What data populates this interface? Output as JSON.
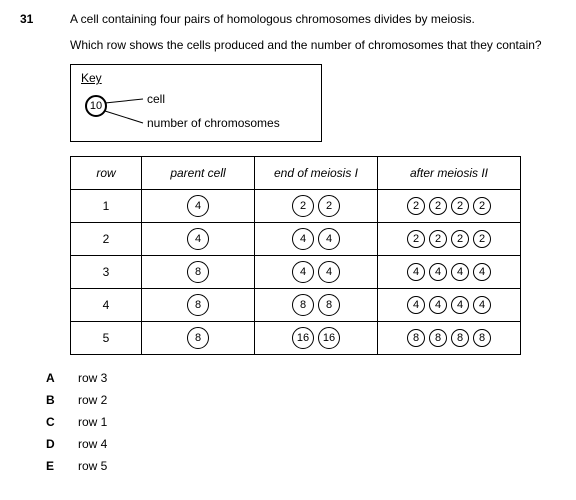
{
  "question": {
    "number": "31",
    "line1": "A cell containing four pairs of homologous chromosomes divides by meiosis.",
    "line2": "Which row shows the cells produced and the number of chromosomes that they contain?"
  },
  "key": {
    "title": "Key",
    "example_number": "10",
    "label_cell": "cell",
    "label_num": "number of chromosomes"
  },
  "table": {
    "headers": {
      "row": "row",
      "parent": "parent cell",
      "m1": "end of meiosis I",
      "m2": "after meiosis II"
    },
    "rows": [
      {
        "n": "1",
        "parent": "4",
        "m1": [
          "2",
          "2"
        ],
        "m2": [
          "2",
          "2",
          "2",
          "2"
        ]
      },
      {
        "n": "2",
        "parent": "4",
        "m1": [
          "4",
          "4"
        ],
        "m2": [
          "2",
          "2",
          "2",
          "2"
        ]
      },
      {
        "n": "3",
        "parent": "8",
        "m1": [
          "4",
          "4"
        ],
        "m2": [
          "4",
          "4",
          "4",
          "4"
        ]
      },
      {
        "n": "4",
        "parent": "8",
        "m1": [
          "8",
          "8"
        ],
        "m2": [
          "4",
          "4",
          "4",
          "4"
        ]
      },
      {
        "n": "5",
        "parent": "8",
        "m1": [
          "16",
          "16"
        ],
        "m2": [
          "8",
          "8",
          "8",
          "8"
        ]
      }
    ]
  },
  "answers": [
    {
      "letter": "A",
      "text": "row 3"
    },
    {
      "letter": "B",
      "text": "row 2"
    },
    {
      "letter": "C",
      "text": "row 1"
    },
    {
      "letter": "D",
      "text": "row 4"
    },
    {
      "letter": "E",
      "text": "row 5"
    }
  ]
}
